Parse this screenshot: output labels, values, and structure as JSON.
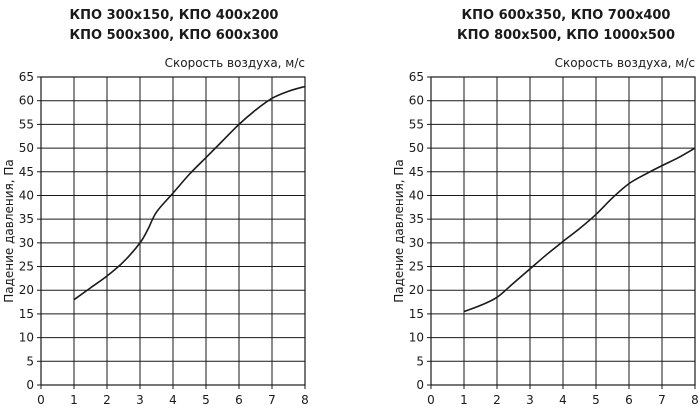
{
  "chart_data": [
    {
      "type": "line",
      "title_lines": [
        "КПО 300х150,  КПО 400х200",
        "КПО 500х300,  КПО 600х300"
      ],
      "xlabel": "Скорость воздуха, м/с",
      "ylabel": "Падение давления, Па",
      "xlim": [
        0,
        8
      ],
      "ylim": [
        0,
        65
      ],
      "x_ticks": [
        0,
        1,
        2,
        3,
        4,
        5,
        6,
        7,
        8
      ],
      "y_ticks": [
        0,
        5,
        10,
        15,
        20,
        25,
        30,
        35,
        40,
        45,
        50,
        55,
        60,
        65
      ],
      "grid": true,
      "series": [
        {
          "x": [
            1,
            1.5,
            2,
            2.5,
            3,
            3.25,
            3.5,
            4,
            4.5,
            5,
            5.5,
            6,
            6.5,
            7,
            7.5,
            8
          ],
          "values": [
            18,
            20.5,
            23,
            26,
            30,
            33,
            36.5,
            40.5,
            44.5,
            48,
            51.5,
            55,
            58,
            60.5,
            62,
            63
          ]
        }
      ]
    },
    {
      "type": "line",
      "title_lines": [
        "КПО 600х350,  КПО 700х400",
        "КПО 800х500,  КПО 1000х500"
      ],
      "xlabel": "Скорость воздуха, м/с",
      "ylabel": "Падение давления, Па",
      "xlim": [
        0,
        8
      ],
      "ylim": [
        0,
        65
      ],
      "x_ticks": [
        0,
        1,
        2,
        3,
        4,
        5,
        6,
        7,
        8
      ],
      "y_ticks": [
        0,
        5,
        10,
        15,
        20,
        25,
        30,
        35,
        40,
        45,
        50,
        55,
        60,
        65
      ],
      "grid": true,
      "series": [
        {
          "x": [
            1,
            1.5,
            2,
            2.5,
            3,
            3.5,
            4,
            4.5,
            5,
            5.5,
            6,
            6.5,
            7,
            7.5,
            8
          ],
          "values": [
            15.5,
            16.8,
            18.5,
            21.5,
            24.5,
            27.5,
            30.3,
            33,
            36,
            39.5,
            42.5,
            44.5,
            46.3,
            48,
            50
          ]
        }
      ]
    }
  ]
}
